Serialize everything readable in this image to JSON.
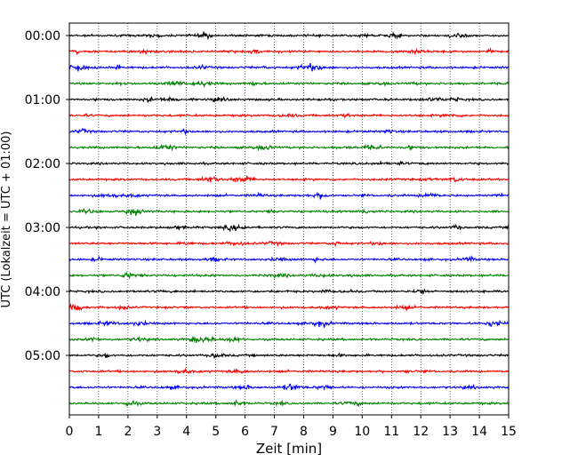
{
  "chart_data": {
    "type": "line",
    "subtype": "helicorder",
    "title": "",
    "xlabel": "Zeit  [min]",
    "ylabel": "UTC (Lokalzeit = UTC + 01:00)",
    "xlim": [
      0,
      15
    ],
    "x_ticks": [
      "0",
      "1",
      "2",
      "3",
      "4",
      "5",
      "6",
      "7",
      "8",
      "9",
      "10",
      "11",
      "12",
      "13",
      "14",
      "15"
    ],
    "y_tick_labels": [
      "00:00",
      "01:00",
      "02:00",
      "03:00",
      "04:00",
      "05:00"
    ],
    "traces_per_hour": 4,
    "trace_count": 24,
    "trace_colors": [
      "#000000",
      "#ff0000",
      "#0000ff",
      "#008000"
    ],
    "grid": "vertical dotted at each minute",
    "legend": "none",
    "series": [
      {
        "row": 0,
        "start": "00:00",
        "color": "#000000"
      },
      {
        "row": 1,
        "start": "00:15",
        "color": "#ff0000"
      },
      {
        "row": 2,
        "start": "00:30",
        "color": "#0000ff"
      },
      {
        "row": 3,
        "start": "00:45",
        "color": "#008000"
      },
      {
        "row": 4,
        "start": "01:00",
        "color": "#000000"
      },
      {
        "row": 5,
        "start": "01:15",
        "color": "#ff0000"
      },
      {
        "row": 6,
        "start": "01:30",
        "color": "#0000ff"
      },
      {
        "row": 7,
        "start": "01:45",
        "color": "#008000"
      },
      {
        "row": 8,
        "start": "02:00",
        "color": "#000000"
      },
      {
        "row": 9,
        "start": "02:15",
        "color": "#ff0000"
      },
      {
        "row": 10,
        "start": "02:30",
        "color": "#0000ff"
      },
      {
        "row": 11,
        "start": "02:45",
        "color": "#008000"
      },
      {
        "row": 12,
        "start": "03:00",
        "color": "#000000"
      },
      {
        "row": 13,
        "start": "03:15",
        "color": "#ff0000"
      },
      {
        "row": 14,
        "start": "03:30",
        "color": "#0000ff"
      },
      {
        "row": 15,
        "start": "03:45",
        "color": "#008000"
      },
      {
        "row": 16,
        "start": "04:00",
        "color": "#000000"
      },
      {
        "row": 17,
        "start": "04:15",
        "color": "#ff0000"
      },
      {
        "row": 18,
        "start": "04:30",
        "color": "#0000ff"
      },
      {
        "row": 19,
        "start": "04:45",
        "color": "#008000"
      },
      {
        "row": 20,
        "start": "05:00",
        "color": "#000000"
      },
      {
        "row": 21,
        "start": "05:15",
        "color": "#ff0000"
      },
      {
        "row": 22,
        "start": "05:30",
        "color": "#0000ff"
      },
      {
        "row": 23,
        "start": "05:45",
        "color": "#008000"
      }
    ]
  }
}
